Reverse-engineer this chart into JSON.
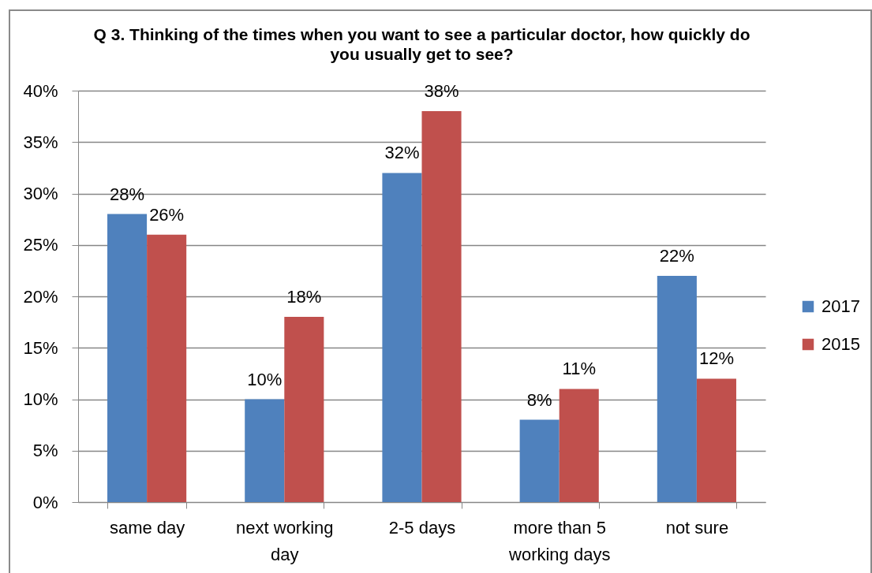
{
  "chart_data": {
    "type": "bar",
    "title": "Q 3. Thinking of the times when you want to see a particular doctor, how quickly do you usually get to see?",
    "categories": [
      "same day",
      "next working day",
      "2-5 days",
      "more than 5 working days",
      "not sure"
    ],
    "series": [
      {
        "name": "2017",
        "color": "#4f81bd",
        "values": [
          28,
          10,
          32,
          8,
          22
        ],
        "value_labels": [
          "28%",
          "10%",
          "32%",
          "8%",
          "22%"
        ]
      },
      {
        "name": "2015",
        "color": "#c0504d",
        "values": [
          26,
          18,
          38,
          11,
          12
        ],
        "value_labels": [
          "26%",
          "18%",
          "38%",
          "11%",
          "12%"
        ]
      }
    ],
    "ylim": [
      0,
      40
    ],
    "yticks": [
      {
        "value": 0,
        "label": "0%"
      },
      {
        "value": 5,
        "label": "5%"
      },
      {
        "value": 10,
        "label": "10%"
      },
      {
        "value": 15,
        "label": "15%"
      },
      {
        "value": 20,
        "label": "20%"
      },
      {
        "value": 25,
        "label": "25%"
      },
      {
        "value": 30,
        "label": "30%"
      },
      {
        "value": 35,
        "label": "35%"
      },
      {
        "value": 40,
        "label": "40%"
      }
    ],
    "grid": "y",
    "legend": "right"
  }
}
